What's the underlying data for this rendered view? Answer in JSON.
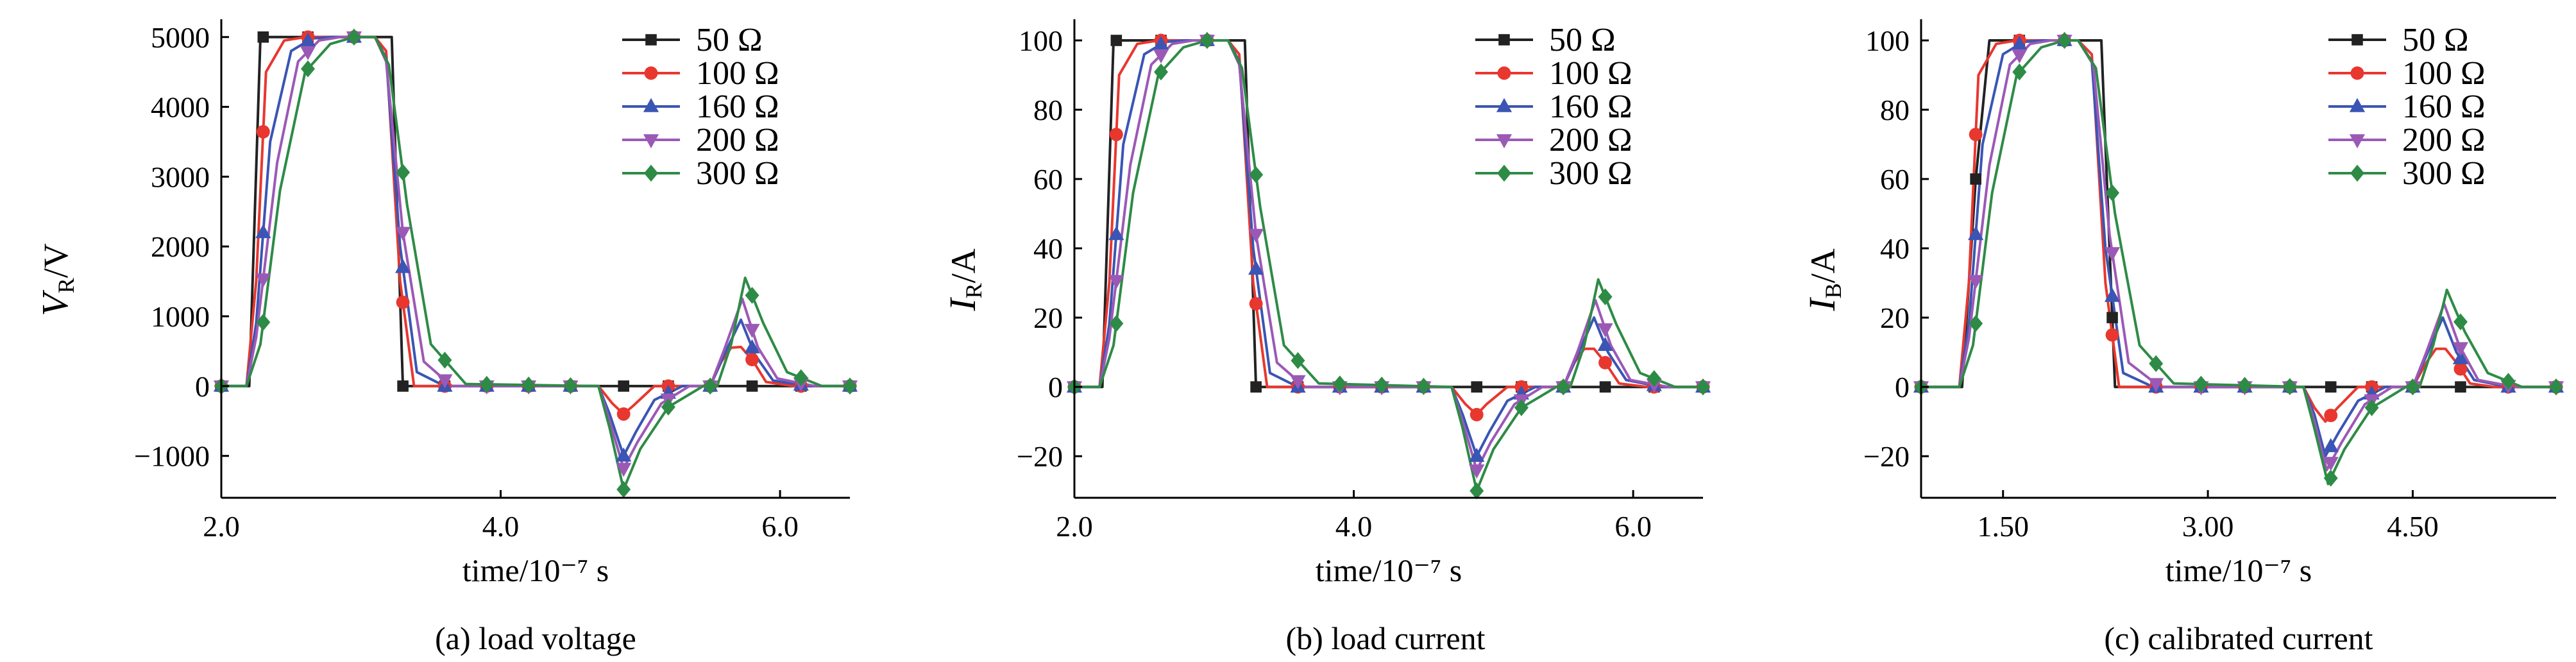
{
  "figure": {
    "captions": [
      "(a) load voltage",
      "(b) load current",
      "(c) calibrated current"
    ]
  },
  "chart_data": [
    {
      "type": "line",
      "caption": "(a) load voltage",
      "xlabel": "time/10⁻⁷ s",
      "ylabel_main": "V",
      "ylabel_sub": "R",
      "ylabel_unit": "/V",
      "xlim": [
        2.0,
        6.5
      ],
      "ylim": [
        -1600,
        5200
      ],
      "xticks": [
        2.0,
        4.0,
        6.0
      ],
      "xtick_labels": [
        "2.0",
        "4.0",
        "6.0"
      ],
      "yticks": [
        -1000,
        0,
        1000,
        2000,
        3000,
        4000,
        5000
      ],
      "ytick_labels": [
        "−1000",
        "0",
        "1000",
        "2000",
        "3000",
        "4000",
        "5000"
      ],
      "grid": false,
      "legend_position": "top-right",
      "colors": [
        "#222222",
        "#e8372f",
        "#3a55b4",
        "#9b59b6",
        "#2e8b46"
      ],
      "markers": [
        "square",
        "circle",
        "triangle-up",
        "triangle-down",
        "diamond"
      ],
      "marker_x": [
        2.0,
        2.3,
        2.62,
        2.95,
        3.3,
        3.6,
        3.9,
        4.2,
        4.5,
        4.88,
        5.2,
        5.5,
        5.8,
        6.15,
        6.5
      ],
      "series": [
        {
          "name": "50 Ω",
          "x": [
            2.0,
            2.2,
            2.28,
            2.4,
            2.6,
            2.8,
            3.1,
            3.22,
            3.3,
            3.5,
            4.7,
            4.88,
            5.5,
            5.65,
            5.72,
            5.78,
            5.85,
            6.0,
            6.5
          ],
          "y": [
            0,
            0,
            5000,
            5000,
            5000,
            5000,
            5000,
            5000,
            0,
            0,
            0,
            0,
            0,
            0,
            0,
            0,
            0,
            0,
            0
          ]
        },
        {
          "name": "100 Ω",
          "x": [
            2.0,
            2.18,
            2.25,
            2.32,
            2.45,
            2.6,
            2.8,
            3.1,
            3.18,
            3.28,
            3.38,
            3.6,
            4.7,
            4.8,
            4.88,
            4.95,
            5.1,
            5.5,
            5.58,
            5.65,
            5.72,
            5.8,
            5.9,
            6.1,
            6.5
          ],
          "y": [
            0,
            0,
            1500,
            4500,
            4950,
            5000,
            5000,
            5000,
            4800,
            1500,
            0,
            0,
            0,
            -250,
            -400,
            -280,
            0,
            0,
            350,
            550,
            560,
            380,
            60,
            0,
            0
          ]
        },
        {
          "name": "160 Ω",
          "x": [
            2.0,
            2.18,
            2.25,
            2.35,
            2.5,
            2.65,
            2.8,
            3.1,
            3.18,
            3.28,
            3.4,
            3.6,
            4.7,
            4.78,
            4.88,
            4.97,
            5.1,
            5.3,
            5.5,
            5.6,
            5.72,
            5.82,
            5.95,
            6.2,
            6.5
          ],
          "y": [
            0,
            0,
            900,
            3500,
            4800,
            4980,
            5000,
            5000,
            4700,
            2000,
            200,
            0,
            0,
            -400,
            -1000,
            -650,
            -200,
            0,
            0,
            450,
            950,
            450,
            80,
            0,
            0
          ]
        },
        {
          "name": "200 Ω",
          "x": [
            2.0,
            2.18,
            2.25,
            2.4,
            2.55,
            2.7,
            2.85,
            3.1,
            3.18,
            3.3,
            3.45,
            3.65,
            4.7,
            4.78,
            4.88,
            4.98,
            5.15,
            5.35,
            5.5,
            5.6,
            5.73,
            5.84,
            5.98,
            6.25,
            6.5
          ],
          "y": [
            0,
            0,
            700,
            3200,
            4650,
            4950,
            5000,
            5000,
            4650,
            2200,
            350,
            0,
            0,
            -500,
            -1180,
            -800,
            -250,
            0,
            0,
            520,
            1250,
            560,
            110,
            0,
            0
          ]
        },
        {
          "name": "300 Ω",
          "x": [
            2.0,
            2.18,
            2.28,
            2.42,
            2.6,
            2.78,
            2.95,
            3.1,
            3.2,
            3.33,
            3.5,
            3.75,
            4.7,
            4.78,
            4.88,
            5.0,
            5.2,
            5.45,
            5.55,
            5.65,
            5.75,
            5.88,
            6.05,
            6.3,
            6.5
          ],
          "y": [
            0,
            0,
            600,
            2800,
            4500,
            4900,
            5000,
            5000,
            4600,
            2600,
            600,
            30,
            0,
            -600,
            -1480,
            -900,
            -300,
            0,
            0,
            600,
            1550,
            900,
            200,
            0,
            0
          ]
        }
      ]
    },
    {
      "type": "line",
      "caption": "(b) load current",
      "xlabel": "time/10⁻⁷ s",
      "ylabel_main": "I",
      "ylabel_sub": "R",
      "ylabel_unit": "/A",
      "xlim": [
        2.0,
        6.5
      ],
      "ylim": [
        -32,
        105
      ],
      "xticks": [
        2.0,
        4.0,
        6.0
      ],
      "xtick_labels": [
        "2.0",
        "4.0",
        "6.0"
      ],
      "yticks": [
        -20,
        0,
        20,
        40,
        60,
        80,
        100
      ],
      "ytick_labels": [
        "−20",
        "0",
        "20",
        "40",
        "60",
        "80",
        "100"
      ],
      "grid": false,
      "legend_position": "top-right",
      "colors": [
        "#222222",
        "#e8372f",
        "#3a55b4",
        "#9b59b6",
        "#2e8b46"
      ],
      "markers": [
        "square",
        "circle",
        "triangle-up",
        "triangle-down",
        "diamond"
      ],
      "marker_x": [
        2.0,
        2.3,
        2.62,
        2.95,
        3.3,
        3.6,
        3.9,
        4.2,
        4.5,
        4.88,
        5.2,
        5.5,
        5.8,
        6.15,
        6.5
      ],
      "series": [
        {
          "name": "50 Ω",
          "x": [
            2.0,
            2.2,
            2.28,
            2.4,
            2.6,
            2.8,
            3.1,
            3.22,
            3.3,
            3.5,
            4.7,
            4.88,
            5.5,
            5.8,
            6.0,
            6.5
          ],
          "y": [
            0,
            0,
            100,
            100,
            100,
            100,
            100,
            100,
            0,
            0,
            0,
            0,
            0,
            0,
            0,
            0
          ]
        },
        {
          "name": "100 Ω",
          "x": [
            2.0,
            2.18,
            2.25,
            2.32,
            2.45,
            2.6,
            2.8,
            3.1,
            3.18,
            3.28,
            3.38,
            3.6,
            4.7,
            4.8,
            4.88,
            4.95,
            5.1,
            5.5,
            5.58,
            5.65,
            5.72,
            5.8,
            5.9,
            6.1,
            6.5
          ],
          "y": [
            0,
            0,
            30,
            90,
            99,
            100,
            100,
            100,
            96,
            30,
            0,
            0,
            0,
            -5,
            -8,
            -5,
            0,
            0,
            7,
            11,
            11,
            7,
            1,
            0,
            0
          ]
        },
        {
          "name": "160 Ω",
          "x": [
            2.0,
            2.18,
            2.25,
            2.35,
            2.5,
            2.65,
            2.8,
            3.1,
            3.18,
            3.28,
            3.4,
            3.6,
            4.7,
            4.78,
            4.88,
            4.97,
            5.1,
            5.3,
            5.5,
            5.6,
            5.72,
            5.82,
            5.95,
            6.2,
            6.5
          ],
          "y": [
            0,
            0,
            18,
            70,
            96,
            99.6,
            100,
            100,
            94,
            40,
            4,
            0,
            0,
            -8,
            -20,
            -13,
            -4,
            0,
            0,
            9,
            20,
            10,
            2,
            0,
            0
          ]
        },
        {
          "name": "200 Ω",
          "x": [
            2.0,
            2.18,
            2.25,
            2.4,
            2.55,
            2.7,
            2.85,
            3.1,
            3.18,
            3.3,
            3.45,
            3.65,
            4.7,
            4.78,
            4.88,
            4.98,
            5.15,
            5.35,
            5.5,
            5.6,
            5.73,
            5.84,
            5.98,
            6.25,
            6.5
          ],
          "y": [
            0,
            0,
            14,
            64,
            93,
            99,
            100,
            100,
            93,
            44,
            7,
            0,
            0,
            -10,
            -24,
            -16,
            -5,
            0,
            0,
            10,
            25,
            12,
            2,
            0,
            0
          ]
        },
        {
          "name": "300 Ω",
          "x": [
            2.0,
            2.18,
            2.28,
            2.42,
            2.6,
            2.78,
            2.95,
            3.1,
            3.2,
            3.33,
            3.5,
            3.75,
            4.7,
            4.78,
            4.88,
            5.0,
            5.2,
            5.45,
            5.55,
            5.65,
            5.75,
            5.88,
            6.05,
            6.3,
            6.5
          ],
          "y": [
            0,
            0,
            12,
            56,
            90,
            98,
            100,
            100,
            92,
            52,
            12,
            1,
            0,
            -12,
            -30,
            -18,
            -6,
            0,
            0,
            12,
            31,
            18,
            4,
            0,
            0
          ]
        }
      ]
    },
    {
      "type": "line",
      "caption": "(c) calibrated current",
      "xlabel": "time/10⁻⁷ s",
      "ylabel_main": "I",
      "ylabel_sub": "B",
      "ylabel_unit": "/A",
      "xlim": [
        0.9,
        5.55
      ],
      "ylim": [
        -32,
        105
      ],
      "xticks": [
        1.5,
        3.0,
        4.5
      ],
      "xtick_labels": [
        "1.50",
        "3.00",
        "4.50"
      ],
      "yticks": [
        -20,
        0,
        20,
        40,
        60,
        80,
        100
      ],
      "ytick_labels": [
        "−20",
        "0",
        "20",
        "40",
        "60",
        "80",
        "100"
      ],
      "grid": false,
      "legend_position": "top-right",
      "colors": [
        "#222222",
        "#e8372f",
        "#3a55b4",
        "#9b59b6",
        "#2e8b46"
      ],
      "markers": [
        "square",
        "circle",
        "triangle-up",
        "triangle-down",
        "diamond"
      ],
      "marker_x": [
        0.9,
        1.3,
        1.62,
        1.95,
        2.3,
        2.62,
        2.95,
        3.27,
        3.6,
        3.9,
        4.2,
        4.5,
        4.85,
        5.2,
        5.55
      ],
      "series": [
        {
          "name": "50 Ω",
          "x": [
            0.9,
            1.2,
            1.3,
            1.4,
            1.6,
            1.8,
            2.05,
            2.22,
            2.32,
            2.5,
            3.7,
            3.9,
            4.5,
            4.85,
            5.2,
            5.55
          ],
          "y": [
            0,
            0,
            60,
            100,
            100,
            100,
            100,
            100,
            0,
            0,
            0,
            0,
            0,
            0,
            0,
            0
          ]
        },
        {
          "name": "100 Ω",
          "x": [
            0.9,
            1.18,
            1.25,
            1.32,
            1.45,
            1.6,
            1.8,
            2.05,
            2.15,
            2.25,
            2.35,
            2.55,
            3.7,
            3.78,
            3.86,
            3.95,
            4.1,
            4.5,
            4.6,
            4.67,
            4.74,
            4.82,
            4.92,
            5.1,
            5.55
          ],
          "y": [
            0,
            0,
            30,
            90,
            99,
            100,
            100,
            100,
            96,
            30,
            0,
            0,
            0,
            -6,
            -10,
            -6,
            0,
            0,
            7,
            11,
            11,
            7,
            1,
            0,
            0
          ]
        },
        {
          "name": "160 Ω",
          "x": [
            0.9,
            1.18,
            1.25,
            1.35,
            1.5,
            1.65,
            1.8,
            2.05,
            2.15,
            2.25,
            2.38,
            2.6,
            3.7,
            3.78,
            3.86,
            3.96,
            4.1,
            4.3,
            4.5,
            4.6,
            4.72,
            4.82,
            4.95,
            5.2,
            5.55
          ],
          "y": [
            0,
            0,
            18,
            70,
            96,
            99.6,
            100,
            100,
            94,
            40,
            4,
            0,
            0,
            -8,
            -20,
            -13,
            -4,
            0,
            0,
            9,
            20,
            10,
            2,
            0,
            0
          ]
        },
        {
          "name": "200 Ω",
          "x": [
            0.9,
            1.18,
            1.25,
            1.4,
            1.55,
            1.7,
            1.85,
            2.05,
            2.16,
            2.28,
            2.42,
            2.65,
            3.7,
            3.78,
            3.87,
            3.98,
            4.15,
            4.35,
            4.5,
            4.6,
            4.73,
            4.84,
            4.98,
            5.25,
            5.55
          ],
          "y": [
            0,
            0,
            14,
            64,
            93,
            99,
            100,
            100,
            93,
            44,
            7,
            0,
            0,
            -10,
            -24,
            -16,
            -5,
            0,
            0,
            10,
            24,
            12,
            2,
            0,
            0
          ]
        },
        {
          "name": "300 Ω",
          "x": [
            0.9,
            1.18,
            1.28,
            1.42,
            1.6,
            1.78,
            1.95,
            2.05,
            2.18,
            2.32,
            2.5,
            2.75,
            3.7,
            3.78,
            3.88,
            4.0,
            4.2,
            4.45,
            4.55,
            4.65,
            4.75,
            4.88,
            5.05,
            5.3,
            5.55
          ],
          "y": [
            0,
            0,
            12,
            56,
            90,
            98,
            100,
            100,
            92,
            50,
            12,
            1,
            0,
            -12,
            -28,
            -18,
            -6,
            0,
            0,
            12,
            28,
            16,
            4,
            0,
            0
          ]
        }
      ]
    }
  ]
}
